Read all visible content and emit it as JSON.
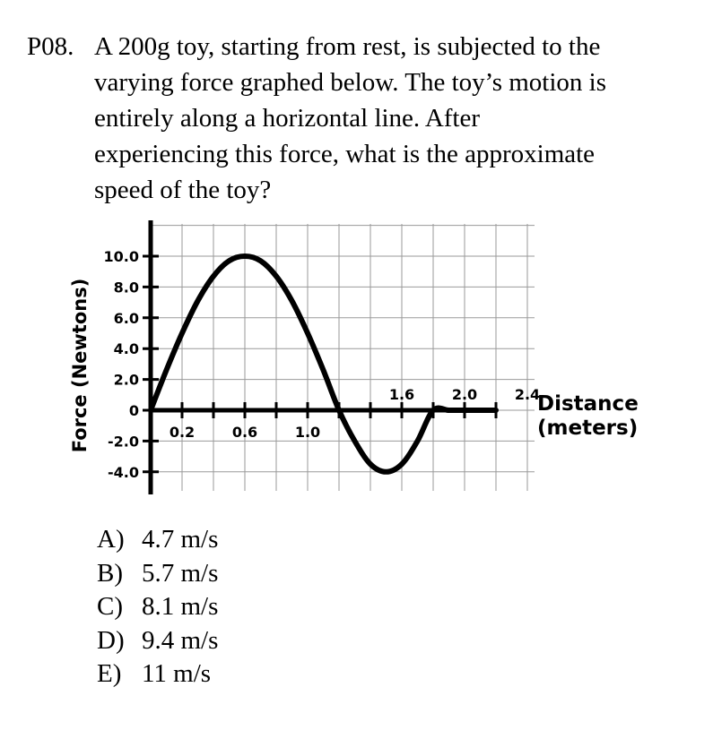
{
  "problem": {
    "number": "P08.",
    "lines": [
      "A 200g toy, starting from rest, is subjected to the",
      "varying force graphed below.  The toy’s motion is",
      "entirely along a horizontal line.  After",
      "experiencing this force, what is the approximate",
      "speed of the toy?"
    ]
  },
  "chart_data": {
    "type": "line",
    "ylabel": "Force (Newtons)",
    "xlabel": "Distance\n(meters)",
    "xlabel_lines": [
      "Distance",
      "(meters)"
    ],
    "y_ticks": [
      "10.0",
      "8.0",
      "6.0",
      "4.0",
      "2.0",
      "0",
      "-2.0",
      "-4.0"
    ],
    "y_tick_values": [
      10,
      8,
      6,
      4,
      2,
      0,
      -2,
      -4
    ],
    "x_ticks_below": [
      {
        "label": "0.2",
        "value": 0.2
      },
      {
        "label": "0.6",
        "value": 0.6
      },
      {
        "label": "1.0",
        "value": 1.0
      }
    ],
    "x_ticks_above": [
      {
        "label": "1.6",
        "value": 1.6
      },
      {
        "label": "2.0",
        "value": 2.0
      },
      {
        "label": "2.4",
        "value": 2.4
      }
    ],
    "ylim": [
      -4.0,
      10.0
    ],
    "xlim": [
      0,
      2.4
    ],
    "grid": true,
    "series": [
      {
        "x": [
          0,
          0.1,
          0.2,
          0.3,
          0.4,
          0.5,
          0.6,
          0.7,
          0.8,
          0.9,
          1.0,
          1.1,
          1.2,
          1.3,
          1.4,
          1.5,
          1.6,
          1.7,
          1.8,
          1.9,
          2.0,
          2.1,
          2.2
        ],
        "y": [
          0,
          2.6,
          5.0,
          7.1,
          8.7,
          9.7,
          10.0,
          9.7,
          8.7,
          7.1,
          5.0,
          2.6,
          0,
          -2.0,
          -3.5,
          -4.0,
          -3.5,
          -2.0,
          0,
          0,
          0,
          0,
          0
        ]
      }
    ]
  },
  "choices": [
    {
      "letter": "A)",
      "text": "4.7 m/s"
    },
    {
      "letter": "B)",
      "text": "5.7 m/s"
    },
    {
      "letter": "C)",
      "text": "8.1 m/s"
    },
    {
      "letter": "D)",
      "text": "9.4 m/s"
    },
    {
      "letter": "E)",
      "text": "11 m/s"
    }
  ]
}
